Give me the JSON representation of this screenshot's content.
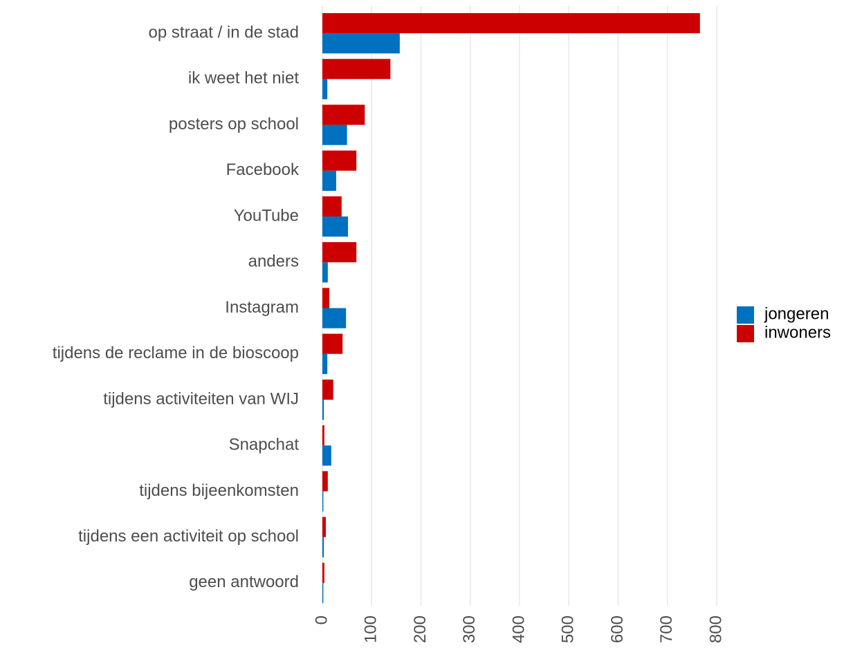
{
  "chart_data": {
    "type": "barh",
    "categories": [
      "op straat / in de stad",
      "ik weet het niet",
      "posters op school",
      "Facebook",
      "YouTube",
      "anders",
      "Instagram",
      "tijdens de reclame in de bioscoop",
      "tijdens activiteiten van WIJ",
      "Snapchat",
      "tijdens bijeenkomsten",
      "tijdens een activiteit op school",
      "geen antwoord"
    ],
    "series": [
      {
        "name": "jongeren",
        "color": "#0070c0",
        "values": [
          157,
          10,
          50,
          28,
          52,
          11,
          48,
          10,
          3,
          18,
          2,
          3,
          2
        ]
      },
      {
        "name": "inwoners",
        "color": "#cc0000",
        "values": [
          766,
          138,
          86,
          69,
          39,
          69,
          14,
          41,
          22,
          4,
          11,
          7,
          4
        ]
      }
    ],
    "xlim": [
      0,
      800
    ],
    "xticks": [
      0,
      100,
      200,
      300,
      400,
      500,
      600,
      700,
      800
    ],
    "grid": true,
    "legend": "right"
  }
}
